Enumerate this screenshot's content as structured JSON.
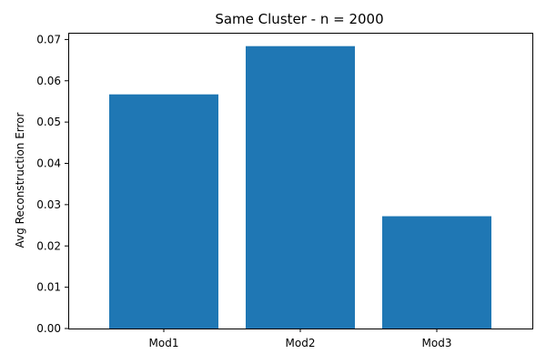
{
  "chart_data": {
    "type": "bar",
    "title": "Same Cluster - n = 2000",
    "xlabel": "",
    "ylabel": "Avg Reconstruction Error",
    "categories": [
      "Mod1",
      "Mod2",
      "Mod3"
    ],
    "values": [
      0.0567,
      0.0684,
      0.0272
    ],
    "ylim": [
      0,
      0.07163
    ],
    "yticks": [
      0.0,
      0.01,
      0.02,
      0.03,
      0.04,
      0.05,
      0.06,
      0.07
    ],
    "ytick_labels": [
      "0.00",
      "0.01",
      "0.02",
      "0.03",
      "0.04",
      "0.05",
      "0.06",
      "0.07"
    ],
    "bar_color": "#1f77b4",
    "grid": false,
    "legend": "none"
  }
}
